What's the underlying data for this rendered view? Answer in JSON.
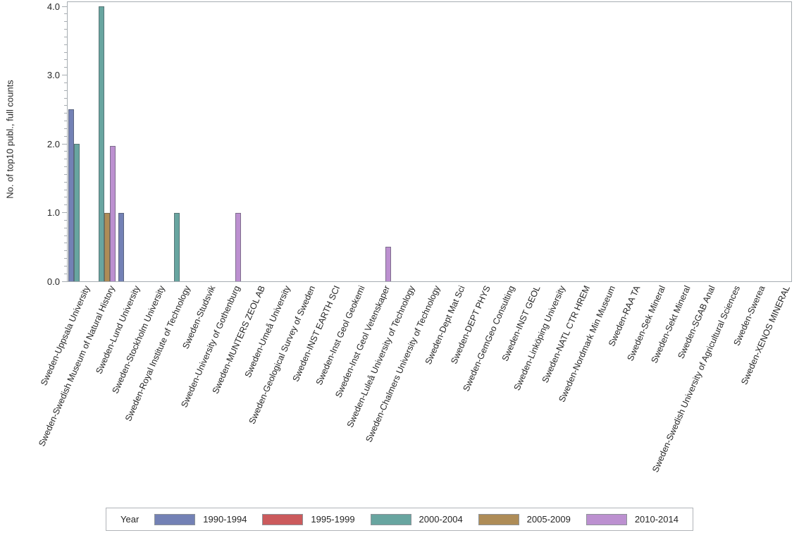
{
  "chart_data": {
    "type": "bar",
    "title": "",
    "xlabel": "",
    "ylabel": "No. of top10 publ., full counts",
    "ylim": [
      0,
      4
    ],
    "yticks": [
      "0.0",
      "1.0",
      "2.0",
      "3.0",
      "4.0"
    ],
    "minor_ticks_between_majors": 8,
    "grid": false,
    "legend_position": "bottom",
    "legend_title": "Year",
    "categories": [
      "Sweden-Uppsala University",
      "Sweden-Swedish Museum of Natural History",
      "Sweden-Lund University",
      "Sweden-Stockholm University",
      "Sweden-Royal Institute of Technology",
      "Sweden-Studsvik",
      "Sweden-University of Gothenburg",
      "Sweden-MUNTERS ZEOL AB",
      "Sweden-Umeå University",
      "Sweden-Geological Survey of Sweden",
      "Sweden-INST EARTH SCI",
      "Sweden-Inst Geol Geokemi",
      "Sweden-Inst Geol Vetenskaper",
      "Sweden-Luleå University of Technology",
      "Sweden-Chalmers University of Technology",
      "Sweden-Dept Mat Sci",
      "Sweden-DEPT PHYS",
      "Sweden-GemGeo Consulting",
      "Sweden-INST GEOL",
      "Sweden-Linköping University",
      "Sweden-NATL CTR HREM",
      "Sweden-Nordmark Min Museum",
      "Sweden-RAA TA",
      "Sweden-Sek Mineral",
      "Sweden-Sekt Mineral",
      "Sweden-SGAB Anal",
      "Sweden-Swedish University of Agricultural Sciences",
      "Sweden-Swerea",
      "Sweden-XENOS MINERAL"
    ],
    "series": [
      {
        "name": "1990-1994",
        "color": "#7381b5",
        "values": [
          2.5,
          0,
          1,
          0,
          0,
          0,
          0,
          0,
          0,
          0,
          0,
          0,
          0,
          0,
          0,
          0,
          0,
          0,
          0,
          0,
          0,
          0,
          0,
          0,
          0,
          0,
          0,
          0,
          0
        ]
      },
      {
        "name": "1995-1999",
        "color": "#cb5a5c",
        "values": [
          0,
          0,
          0,
          0,
          0,
          0,
          0,
          0,
          0,
          0,
          0,
          0,
          0,
          0,
          0,
          0,
          0,
          0,
          0,
          0,
          0,
          0,
          0,
          0,
          0,
          0,
          0,
          0,
          0
        ]
      },
      {
        "name": "2000-2004",
        "color": "#68a5a0",
        "values": [
          2,
          4,
          0,
          0,
          1,
          0,
          0,
          0,
          0,
          0,
          0,
          0,
          0,
          0,
          0,
          0,
          0,
          0,
          0,
          0,
          0,
          0,
          0,
          0,
          0,
          0,
          0,
          0,
          0
        ]
      },
      {
        "name": "2005-2009",
        "color": "#ae8c57",
        "values": [
          0,
          1,
          0,
          0,
          0,
          0,
          0,
          0,
          0,
          0,
          0,
          0,
          0,
          0,
          0,
          0,
          0,
          0,
          0,
          0,
          0,
          0,
          0,
          0,
          0,
          0,
          0,
          0,
          0
        ]
      },
      {
        "name": "2010-2014",
        "color": "#bc90d0",
        "values": [
          0,
          1.97,
          0,
          0,
          0,
          0,
          1,
          0,
          0,
          0,
          0,
          0,
          0.5,
          0,
          0,
          0,
          0,
          0,
          0,
          0,
          0,
          0,
          0,
          0,
          0,
          0,
          0,
          0,
          0
        ]
      }
    ]
  },
  "colors": {
    "axis": "#a7adb2",
    "text": "#262626"
  }
}
